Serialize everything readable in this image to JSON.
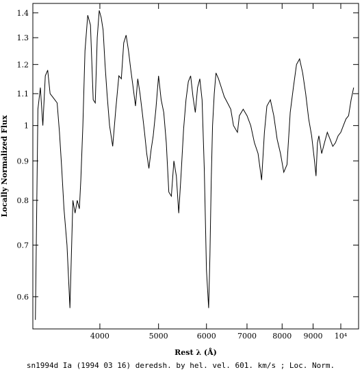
{
  "chart_data": {
    "type": "line",
    "xlabel": "Rest λ (Å)",
    "ylabel": "Locally Normalized Flux",
    "caption": "sn1994d Ia (1994 03 16) deredsh. by hel. vel.   601. km/s ;  Loc. Norm.",
    "x_scale": "log",
    "y_scale": "log",
    "xlim": [
      3100,
      10700
    ],
    "ylim": [
      0.545,
      1.44
    ],
    "grid": false,
    "legend": "none",
    "x_ticks": [
      {
        "value": 4000,
        "label": "4000"
      },
      {
        "value": 5000,
        "label": "5000"
      },
      {
        "value": 6000,
        "label": "6000"
      },
      {
        "value": 7000,
        "label": "7000"
      },
      {
        "value": 8000,
        "label": "8000"
      },
      {
        "value": 9000,
        "label": "9000"
      },
      {
        "value": 10000,
        "label": "10⁴"
      }
    ],
    "y_ticks": [
      {
        "value": 0.6,
        "label": "0.6"
      },
      {
        "value": 0.7,
        "label": "0.7"
      },
      {
        "value": 0.8,
        "label": "0.8"
      },
      {
        "value": 0.9,
        "label": "0.9"
      },
      {
        "value": 1.0,
        "label": "1"
      },
      {
        "value": 1.1,
        "label": "1.1"
      },
      {
        "value": 1.2,
        "label": "1.2"
      },
      {
        "value": 1.3,
        "label": "1.3"
      },
      {
        "value": 1.4,
        "label": "1.4"
      }
    ],
    "series": [
      {
        "color": "#000000",
        "x": [
          3130,
          3160,
          3190,
          3220,
          3250,
          3280,
          3310,
          3340,
          3370,
          3400,
          3430,
          3460,
          3490,
          3530,
          3570,
          3610,
          3640,
          3670,
          3700,
          3720,
          3750,
          3780,
          3820,
          3860,
          3900,
          3930,
          3960,
          3990,
          4020,
          4050,
          4080,
          4110,
          4150,
          4200,
          4250,
          4300,
          4340,
          4380,
          4420,
          4460,
          4500,
          4540,
          4580,
          4620,
          4660,
          4700,
          4740,
          4780,
          4820,
          4860,
          4900,
          4950,
          5000,
          5050,
          5100,
          5150,
          5200,
          5250,
          5300,
          5350,
          5400,
          5450,
          5500,
          5550,
          5600,
          5650,
          5700,
          5750,
          5800,
          5850,
          5900,
          5950,
          6000,
          6050,
          6080,
          6110,
          6140,
          6180,
          6220,
          6280,
          6350,
          6420,
          6500,
          6580,
          6650,
          6700,
          6750,
          6800,
          6900,
          7000,
          7100,
          7200,
          7300,
          7400,
          7480,
          7550,
          7650,
          7750,
          7850,
          7950,
          8050,
          8150,
          8250,
          8350,
          8450,
          8550,
          8650,
          8750,
          8850,
          8950,
          9050,
          9100,
          9150,
          9200,
          9300,
          9400,
          9500,
          9600,
          9700,
          9800,
          9900,
          10000,
          10100,
          10200,
          10300,
          10400,
          10500
        ],
        "y": [
          0.56,
          1.05,
          1.12,
          1.0,
          1.16,
          1.18,
          1.1,
          1.09,
          1.08,
          1.07,
          0.98,
          0.88,
          0.78,
          0.7,
          0.58,
          0.8,
          0.77,
          0.8,
          0.78,
          0.85,
          1.0,
          1.25,
          1.39,
          1.35,
          1.08,
          1.07,
          1.3,
          1.41,
          1.38,
          1.33,
          1.2,
          1.1,
          1.0,
          0.94,
          1.05,
          1.16,
          1.15,
          1.28,
          1.31,
          1.25,
          1.18,
          1.12,
          1.06,
          1.15,
          1.1,
          1.04,
          0.98,
          0.92,
          0.88,
          0.93,
          0.97,
          1.05,
          1.16,
          1.08,
          1.04,
          0.95,
          0.82,
          0.81,
          0.9,
          0.86,
          0.77,
          0.87,
          0.99,
          1.08,
          1.14,
          1.16,
          1.09,
          1.04,
          1.12,
          1.15,
          1.08,
          0.88,
          0.65,
          0.58,
          0.68,
          0.85,
          1.0,
          1.1,
          1.17,
          1.15,
          1.12,
          1.09,
          1.07,
          1.05,
          1.0,
          0.99,
          0.98,
          1.03,
          1.05,
          1.03,
          1.0,
          0.95,
          0.92,
          0.85,
          0.98,
          1.06,
          1.08,
          1.03,
          0.96,
          0.92,
          0.87,
          0.89,
          1.04,
          1.12,
          1.2,
          1.22,
          1.17,
          1.1,
          1.02,
          0.97,
          0.9,
          0.86,
          0.95,
          0.97,
          0.92,
          0.95,
          0.98,
          0.96,
          0.94,
          0.95,
          0.97,
          0.98,
          1.0,
          1.02,
          1.03,
          1.08,
          1.12
        ]
      }
    ]
  }
}
